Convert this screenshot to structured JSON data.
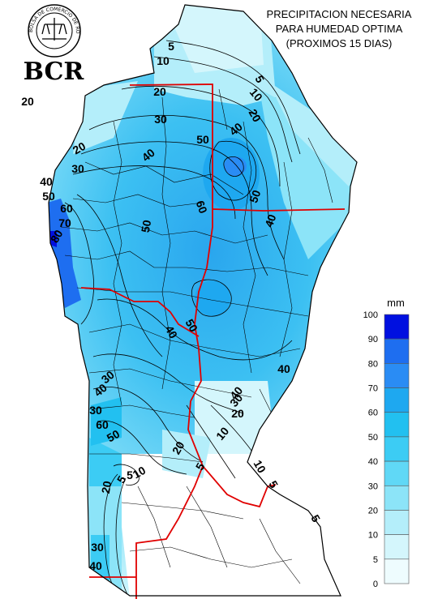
{
  "title": {
    "lines": [
      "PRECIPITACION NECESARIA",
      "PARA HUMEDAD OPTIMA",
      "(PROXIMOS 15 DIAS)"
    ]
  },
  "logo": {
    "acronym": "BCR",
    "seal_text": "BOLSA DE COMERCIO DE ROSARIO"
  },
  "legend": {
    "unit": "mm",
    "levels": [
      {
        "value": "100",
        "color": "#0010e0"
      },
      {
        "value": "90",
        "color": "#1e6ef0"
      },
      {
        "value": "80",
        "color": "#2a8cf4"
      },
      {
        "value": "70",
        "color": "#1ea8f0"
      },
      {
        "value": "60",
        "color": "#22c0f0"
      },
      {
        "value": "50",
        "color": "#3cccf4"
      },
      {
        "value": "40",
        "color": "#60d8f6"
      },
      {
        "value": "30",
        "color": "#8ce4f8"
      },
      {
        "value": "20",
        "color": "#b4eefa"
      },
      {
        "value": "10",
        "color": "#d4f6fc"
      },
      {
        "value": "5",
        "color": "#eefcfe"
      },
      {
        "value": "0",
        "color": "#ffffff"
      }
    ]
  },
  "contour_labels": [
    "5",
    "10",
    "5",
    "10",
    "20",
    "20",
    "30",
    "40",
    "50",
    "40",
    "60",
    "50",
    "40",
    "20",
    "30",
    "40",
    "50",
    "60",
    "70",
    "80",
    "50",
    "40",
    "50",
    "40",
    "30",
    "40",
    "30",
    "20",
    "30",
    "40",
    "60",
    "50",
    "20",
    "10",
    "5",
    "5",
    "10",
    "20",
    "5",
    "10",
    "5",
    "20",
    "30",
    "40",
    "5"
  ],
  "colors": {
    "boundary": "#e00000",
    "district_lines": "#000000",
    "background": "#ffffff"
  }
}
